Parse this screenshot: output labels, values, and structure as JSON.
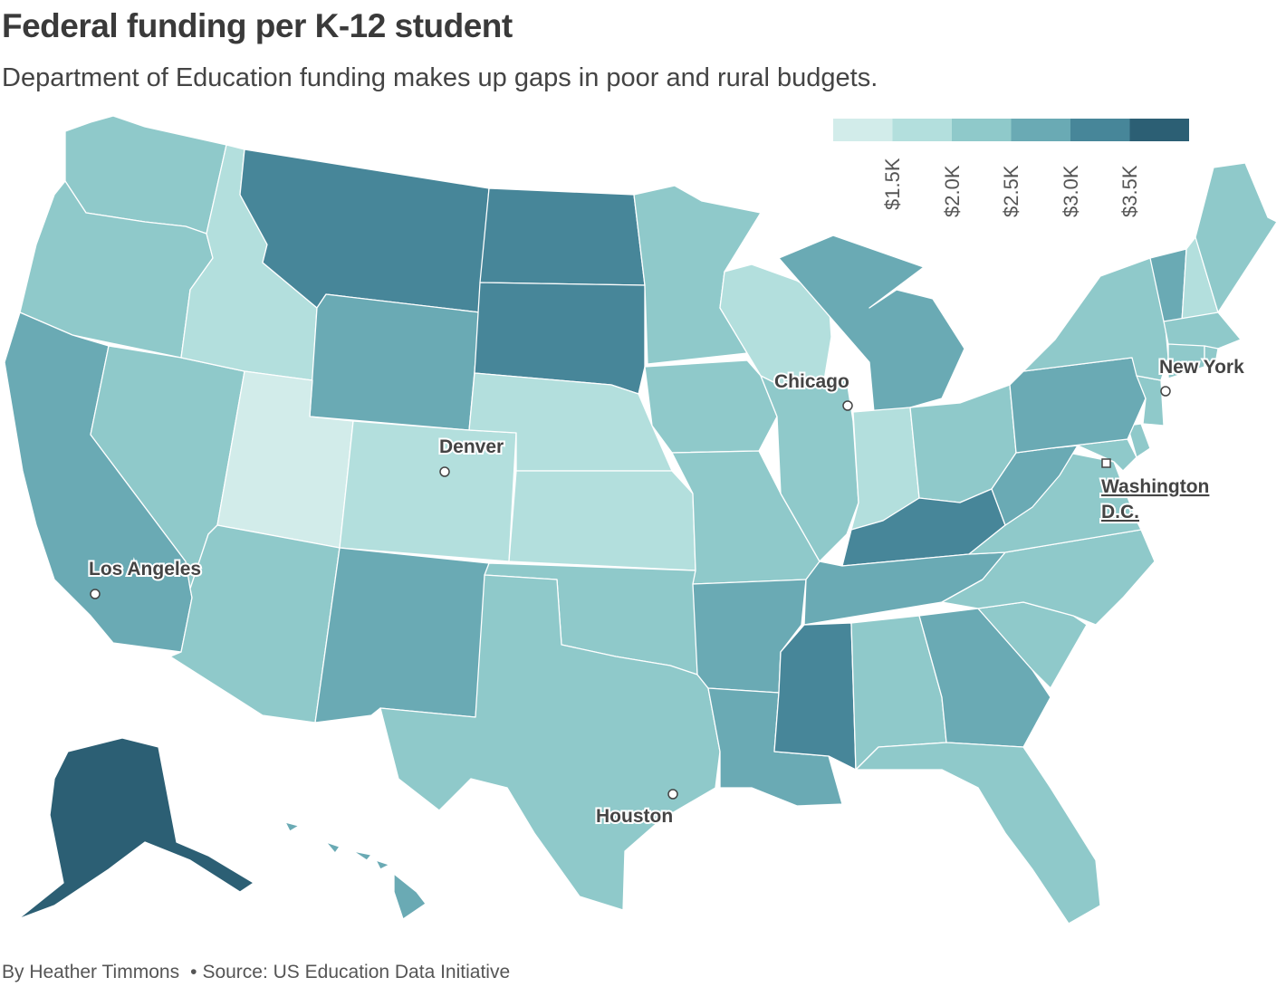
{
  "title": "Federal funding per K-12 student",
  "subtitle": "Department of Education funding makes up gaps in poor and rural budgets.",
  "footer": {
    "byline": "By Heather Timmons",
    "source": "Source: US Education Data Initiative"
  },
  "legend": {
    "colors": [
      "#d2ecea",
      "#b3dfdd",
      "#8fc9ca",
      "#6aaab4",
      "#478699",
      "#2c5f74"
    ],
    "ticks": [
      "$1.5K",
      "$2.0K",
      "$2.5K",
      "$3.0K",
      "$3.5K"
    ]
  },
  "states": [
    {
      "id": "WA",
      "bin": 2
    },
    {
      "id": "OR",
      "bin": 2
    },
    {
      "id": "CA",
      "bin": 3
    },
    {
      "id": "NV",
      "bin": 2
    },
    {
      "id": "ID",
      "bin": 1
    },
    {
      "id": "MT",
      "bin": 4
    },
    {
      "id": "WY",
      "bin": 3
    },
    {
      "id": "UT",
      "bin": 0
    },
    {
      "id": "AZ",
      "bin": 2
    },
    {
      "id": "CO",
      "bin": 1
    },
    {
      "id": "NM",
      "bin": 3
    },
    {
      "id": "ND",
      "bin": 4
    },
    {
      "id": "SD",
      "bin": 4
    },
    {
      "id": "NE",
      "bin": 1
    },
    {
      "id": "KS",
      "bin": 1
    },
    {
      "id": "OK",
      "bin": 2
    },
    {
      "id": "TX",
      "bin": 2
    },
    {
      "id": "MN",
      "bin": 2
    },
    {
      "id": "IA",
      "bin": 2
    },
    {
      "id": "MO",
      "bin": 2
    },
    {
      "id": "AR",
      "bin": 3
    },
    {
      "id": "LA",
      "bin": 3
    },
    {
      "id": "WI",
      "bin": 1
    },
    {
      "id": "IL",
      "bin": 2
    },
    {
      "id": "MI",
      "bin": 3
    },
    {
      "id": "IN",
      "bin": 1
    },
    {
      "id": "OH",
      "bin": 2
    },
    {
      "id": "KY",
      "bin": 4
    },
    {
      "id": "TN",
      "bin": 3
    },
    {
      "id": "MS",
      "bin": 4
    },
    {
      "id": "AL",
      "bin": 2
    },
    {
      "id": "GA",
      "bin": 3
    },
    {
      "id": "FL",
      "bin": 2
    },
    {
      "id": "SC",
      "bin": 2
    },
    {
      "id": "NC",
      "bin": 2
    },
    {
      "id": "VA",
      "bin": 2
    },
    {
      "id": "WV",
      "bin": 3
    },
    {
      "id": "PA",
      "bin": 3
    },
    {
      "id": "NY",
      "bin": 2
    },
    {
      "id": "VT",
      "bin": 3
    },
    {
      "id": "NH",
      "bin": 1
    },
    {
      "id": "ME",
      "bin": 2
    },
    {
      "id": "MA",
      "bin": 2
    },
    {
      "id": "CT",
      "bin": 2
    },
    {
      "id": "RI",
      "bin": 2
    },
    {
      "id": "NJ",
      "bin": 2
    },
    {
      "id": "DE",
      "bin": 2
    },
    {
      "id": "MD",
      "bin": 2
    },
    {
      "id": "AK",
      "bin": 5
    },
    {
      "id": "HI",
      "bin": 3
    }
  ],
  "cities": [
    {
      "id": "denver",
      "name": "Denver"
    },
    {
      "id": "chicago",
      "name": "Chicago"
    },
    {
      "id": "newyork",
      "name": "New York"
    },
    {
      "id": "washington",
      "name": "Washington",
      "name2": "D.C."
    },
    {
      "id": "losangeles",
      "name": "Los Angeles"
    },
    {
      "id": "houston",
      "name": "Houston"
    }
  ]
}
